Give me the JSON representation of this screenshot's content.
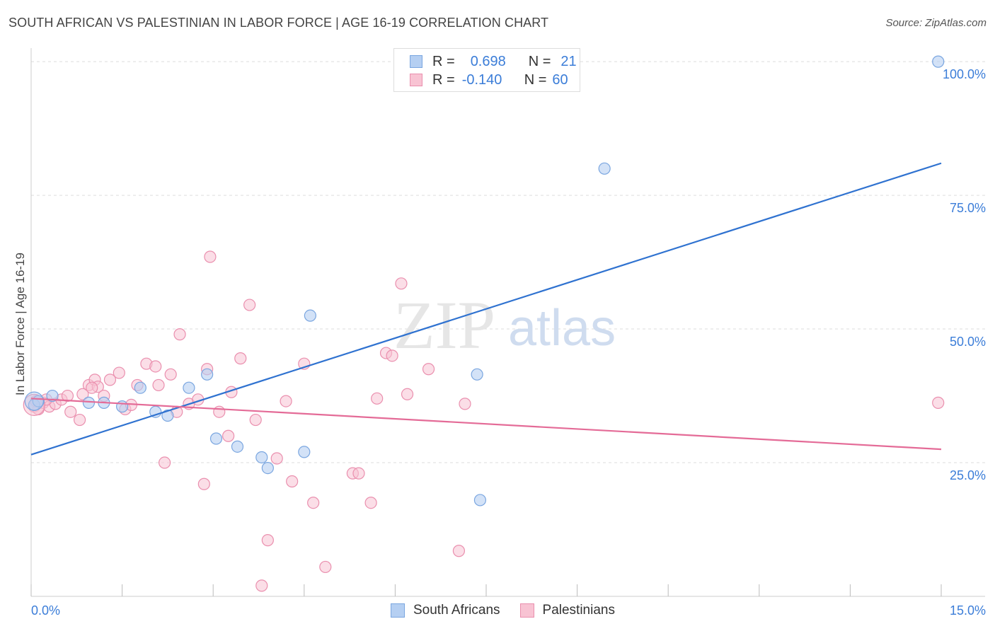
{
  "title": "SOUTH AFRICAN VS PALESTINIAN IN LABOR FORCE | AGE 16-19 CORRELATION CHART",
  "source": "Source: ZipAtlas.com",
  "watermark": {
    "zip": "ZIP",
    "atlas": "atlas"
  },
  "legend": {
    "south_africans": {
      "r_label": "R =",
      "r_value": "0.698",
      "n_label": "N =",
      "n_value": "21"
    },
    "palestinians": {
      "r_label": "R =",
      "r_value": "-0.140",
      "n_label": "N =",
      "n_value": "60"
    }
  },
  "bottom_legend": {
    "south_africans": "South Africans",
    "palestinians": "Palestinians"
  },
  "colors": {
    "blue_fill": "#b5cff2",
    "blue_stroke": "#7aa6e0",
    "blue_line": "#2f72d0",
    "pink_fill": "#f8c3d3",
    "pink_stroke": "#ea8fae",
    "pink_line": "#e46b97",
    "axis_label": "#3b7dd8",
    "grid": "#dddddd"
  },
  "chart_data": {
    "type": "scatter",
    "title": "SOUTH AFRICAN VS PALESTINIAN IN LABOR FORCE | AGE 16-19 CORRELATION CHART",
    "xlabel": "",
    "ylabel": "In Labor Force | Age 16-19",
    "xlim": [
      0,
      15
    ],
    "ylim": [
      0,
      102
    ],
    "x_tick_labels": [
      "0.0%",
      "15.0%"
    ],
    "y_ticks": [
      25,
      50,
      75,
      100
    ],
    "y_tick_labels": [
      "25.0%",
      "50.0%",
      "75.0%",
      "100.0%"
    ],
    "series": [
      {
        "name": "South Africans",
        "points": [
          [
            0.05,
            35.8
          ],
          [
            0.12,
            36.5
          ],
          [
            0.35,
            37.5
          ],
          [
            0.95,
            36.2
          ],
          [
            1.2,
            36.2
          ],
          [
            1.5,
            35.5
          ],
          [
            1.8,
            39.0
          ],
          [
            2.05,
            34.5
          ],
          [
            2.25,
            33.8
          ],
          [
            2.6,
            39.0
          ],
          [
            2.9,
            41.5
          ],
          [
            3.05,
            29.5
          ],
          [
            3.4,
            28.0
          ],
          [
            3.8,
            26.0
          ],
          [
            3.9,
            24.0
          ],
          [
            4.5,
            27.0
          ],
          [
            4.6,
            52.5
          ],
          [
            7.35,
            41.5
          ],
          [
            7.4,
            18.0
          ],
          [
            9.45,
            80.0
          ],
          [
            14.95,
            100.0
          ]
        ],
        "trend": {
          "x": [
            0,
            15
          ],
          "y": [
            26.5,
            81.0
          ]
        }
      },
      {
        "name": "Palestinians",
        "points": [
          [
            0.05,
            35.5
          ],
          [
            0.12,
            35.0
          ],
          [
            0.2,
            36.2
          ],
          [
            0.3,
            35.5
          ],
          [
            0.4,
            36.0
          ],
          [
            0.5,
            36.8
          ],
          [
            0.6,
            37.5
          ],
          [
            0.65,
            34.5
          ],
          [
            0.8,
            33.0
          ],
          [
            0.85,
            37.8
          ],
          [
            0.95,
            39.5
          ],
          [
            1.05,
            40.5
          ],
          [
            1.1,
            39.2
          ],
          [
            1.2,
            37.5
          ],
          [
            1.3,
            40.5
          ],
          [
            1.45,
            41.8
          ],
          [
            1.55,
            35.0
          ],
          [
            1.65,
            35.8
          ],
          [
            1.75,
            39.5
          ],
          [
            1.9,
            43.5
          ],
          [
            2.05,
            43.0
          ],
          [
            2.1,
            39.5
          ],
          [
            2.2,
            25.0
          ],
          [
            2.3,
            41.5
          ],
          [
            2.4,
            34.5
          ],
          [
            2.45,
            49.0
          ],
          [
            2.6,
            36.0
          ],
          [
            2.75,
            36.8
          ],
          [
            2.85,
            21.0
          ],
          [
            2.9,
            42.5
          ],
          [
            2.95,
            63.5
          ],
          [
            3.1,
            34.5
          ],
          [
            3.25,
            30.0
          ],
          [
            3.3,
            38.2
          ],
          [
            3.45,
            44.5
          ],
          [
            3.6,
            54.5
          ],
          [
            3.7,
            33.0
          ],
          [
            3.8,
            2.0
          ],
          [
            3.9,
            10.5
          ],
          [
            4.05,
            25.8
          ],
          [
            4.2,
            36.5
          ],
          [
            4.3,
            21.5
          ],
          [
            4.5,
            43.5
          ],
          [
            4.65,
            17.5
          ],
          [
            4.85,
            5.5
          ],
          [
            5.3,
            23.0
          ],
          [
            5.4,
            23.0
          ],
          [
            5.6,
            17.5
          ],
          [
            5.7,
            37.0
          ],
          [
            5.85,
            45.5
          ],
          [
            5.95,
            45.0
          ],
          [
            6.1,
            58.5
          ],
          [
            6.2,
            37.8
          ],
          [
            6.55,
            42.5
          ],
          [
            7.05,
            8.5
          ],
          [
            7.15,
            36.0
          ],
          [
            14.95,
            36.2
          ],
          [
            0.08,
            36.5
          ],
          [
            0.25,
            36.8
          ],
          [
            1.0,
            39.0
          ]
        ],
        "trend": {
          "x": [
            0,
            15
          ],
          "y": [
            37.0,
            27.5
          ]
        }
      }
    ]
  }
}
